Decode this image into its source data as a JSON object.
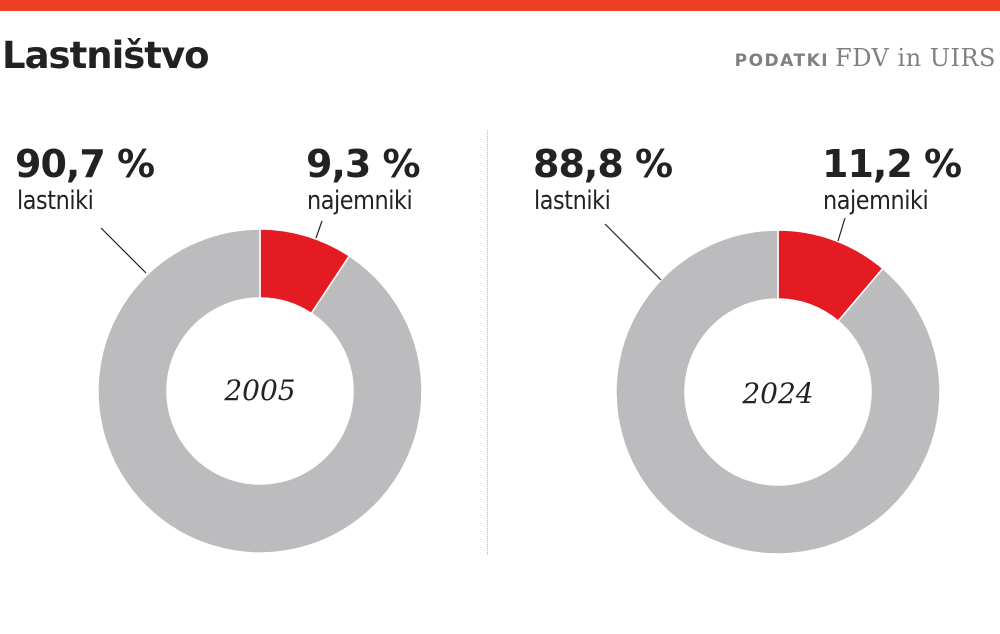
{
  "header": {
    "title": "Lastništvo",
    "source_label": "PODATKI",
    "source_value": "FDV in UIRS"
  },
  "colors": {
    "accent_bar": "#ee3f27",
    "owners": "#bcbcbe",
    "tenants": "#e51b24",
    "divider": "#b9b9b9"
  },
  "charts": [
    {
      "year": "2005",
      "owners": {
        "value_label": "90,7 %",
        "label": "lastniki"
      },
      "tenants": {
        "value_label": "9,3 %",
        "label": "najemniki"
      }
    },
    {
      "year": "2024",
      "owners": {
        "value_label": "88,8 %",
        "label": "lastniki"
      },
      "tenants": {
        "value_label": "11,2 %",
        "label": "najemniki"
      }
    }
  ],
  "chart_data": [
    {
      "type": "pie",
      "title": "Lastništvo 2005",
      "categories": [
        "lastniki",
        "najemniki"
      ],
      "values": [
        90.7,
        9.3
      ],
      "colors": [
        "#bcbcbe",
        "#e51b24"
      ],
      "center_label": "2005",
      "unit": "%"
    },
    {
      "type": "pie",
      "title": "Lastništvo 2024",
      "categories": [
        "lastniki",
        "najemniki"
      ],
      "values": [
        88.8,
        11.2
      ],
      "colors": [
        "#bcbcbe",
        "#e51b24"
      ],
      "center_label": "2024",
      "unit": "%"
    }
  ]
}
